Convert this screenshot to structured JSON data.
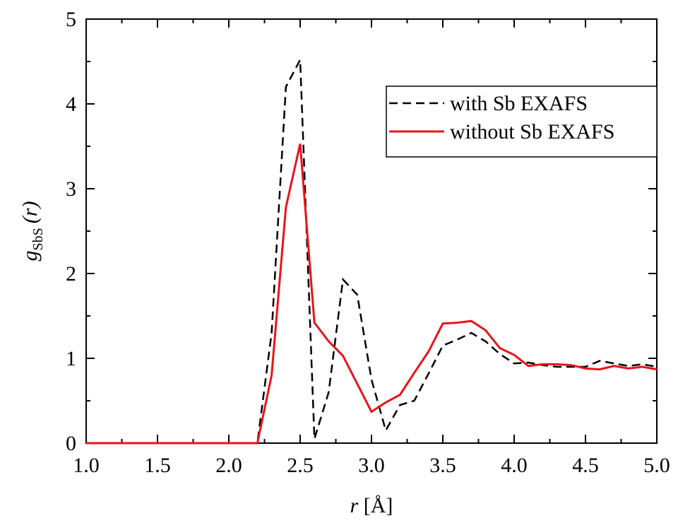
{
  "chart_data": {
    "type": "line",
    "xlabel": {
      "symbol": "r",
      "unit": "[Å]"
    },
    "ylabel": {
      "symbol": "g",
      "subscript": "SbS",
      "argument": "(r)"
    },
    "x": [
      1.0,
      1.1,
      1.2,
      1.3,
      1.4,
      1.5,
      1.6,
      1.7,
      1.8,
      1.9,
      2.0,
      2.1,
      2.2,
      2.3,
      2.4,
      2.5,
      2.6,
      2.7,
      2.8,
      2.9,
      3.0,
      3.1,
      3.2,
      3.3,
      3.4,
      3.5,
      3.6,
      3.7,
      3.8,
      3.9,
      4.0,
      4.1,
      4.2,
      4.3,
      4.4,
      4.5,
      4.6,
      4.7,
      4.8,
      4.9,
      5.0
    ],
    "series": [
      {
        "name": "with Sb EXAFS",
        "color": "#000000",
        "dash": true,
        "values": [
          0,
          0,
          0,
          0,
          0,
          0,
          0,
          0,
          0,
          0,
          0,
          0,
          0,
          1.3,
          4.2,
          4.52,
          0.05,
          0.6,
          1.93,
          1.75,
          0.75,
          0.15,
          0.45,
          0.5,
          0.82,
          1.15,
          1.22,
          1.3,
          1.2,
          1.05,
          0.94,
          0.95,
          0.92,
          0.9,
          0.9,
          0.9,
          0.97,
          0.94,
          0.91,
          0.93,
          0.9
        ]
      },
      {
        "name": "without Sb EXAFS",
        "color": "#e8141b",
        "dash": false,
        "values": [
          0,
          0,
          0,
          0,
          0,
          0,
          0,
          0,
          0,
          0,
          0,
          0,
          0,
          0.8,
          2.78,
          3.53,
          1.42,
          1.2,
          1.03,
          0.7,
          0.37,
          0.48,
          0.57,
          0.83,
          1.08,
          1.41,
          1.42,
          1.44,
          1.33,
          1.12,
          1.04,
          0.91,
          0.93,
          0.93,
          0.92,
          0.88,
          0.87,
          0.91,
          0.88,
          0.9,
          0.87
        ]
      }
    ],
    "xlim": [
      1.0,
      5.0
    ],
    "xticks": [
      {
        "value": 1,
        "label": "1.0"
      },
      {
        "value": 1.5,
        "label": "1.5"
      },
      {
        "value": 2,
        "label": "2.0"
      },
      {
        "value": 2.5,
        "label": "2.5"
      },
      {
        "value": 3,
        "label": "3.0"
      },
      {
        "value": 3.5,
        "label": "3.5"
      },
      {
        "value": 4,
        "label": "4.0"
      },
      {
        "value": 4.5,
        "label": "4.5"
      },
      {
        "value": 5,
        "label": "5.0"
      }
    ],
    "ylim": [
      0,
      5
    ],
    "yticks": [
      0,
      1,
      2,
      3,
      4,
      5
    ],
    "grid": false,
    "legend": "upper-right"
  }
}
